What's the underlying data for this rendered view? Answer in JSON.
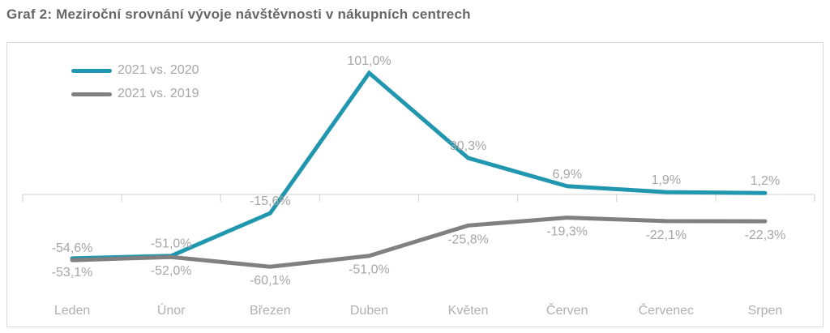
{
  "title": "Graf 2: Meziroční srovnání vývoje návštěvnosti v nákupních centrech",
  "chart_data": {
    "type": "line",
    "title": "Graf 2: Meziroční srovnání vývoje návštěvnosti v nákupních centrech",
    "categories": [
      "Leden",
      "Únor",
      "Březen",
      "Duben",
      "Květen",
      "Červen",
      "Červenec",
      "Srpen"
    ],
    "series": [
      {
        "name": "2021 vs. 2020",
        "color": "#2097ae",
        "values": [
          -53.1,
          -51.0,
          -15.6,
          101.0,
          30.3,
          6.9,
          1.9,
          1.2
        ],
        "labels": [
          "-53,1%",
          "-51,0%",
          "-15,6%",
          "101,0%",
          "30,3%",
          "6,9%",
          "1,9%",
          "1,2%"
        ],
        "label_positions": [
          "below",
          "above",
          "above",
          "above",
          "above",
          "above",
          "above",
          "above"
        ]
      },
      {
        "name": "2021 vs. 2019",
        "color": "#808080",
        "values": [
          -54.6,
          -52.0,
          -60.1,
          -51.0,
          -25.8,
          -19.3,
          -22.1,
          -22.3
        ],
        "labels": [
          "-54,6%",
          "-52,0%",
          "-60,1%",
          "-51,0%",
          "-25,8%",
          "-19,3%",
          "-22,1%",
          "-22,3%"
        ],
        "label_positions": [
          "above",
          "below",
          "below",
          "below",
          "below",
          "below",
          "below",
          "below"
        ]
      }
    ],
    "xlabel": "",
    "ylabel": "",
    "ylim": [
      -110,
      126
    ],
    "zero_axis_line": true,
    "grid": false,
    "legend_position": "top-left",
    "axis_color": "#d9d9d9",
    "data_label_color": "#a6a6a6",
    "axis_label_color": "#b0b0b0"
  }
}
